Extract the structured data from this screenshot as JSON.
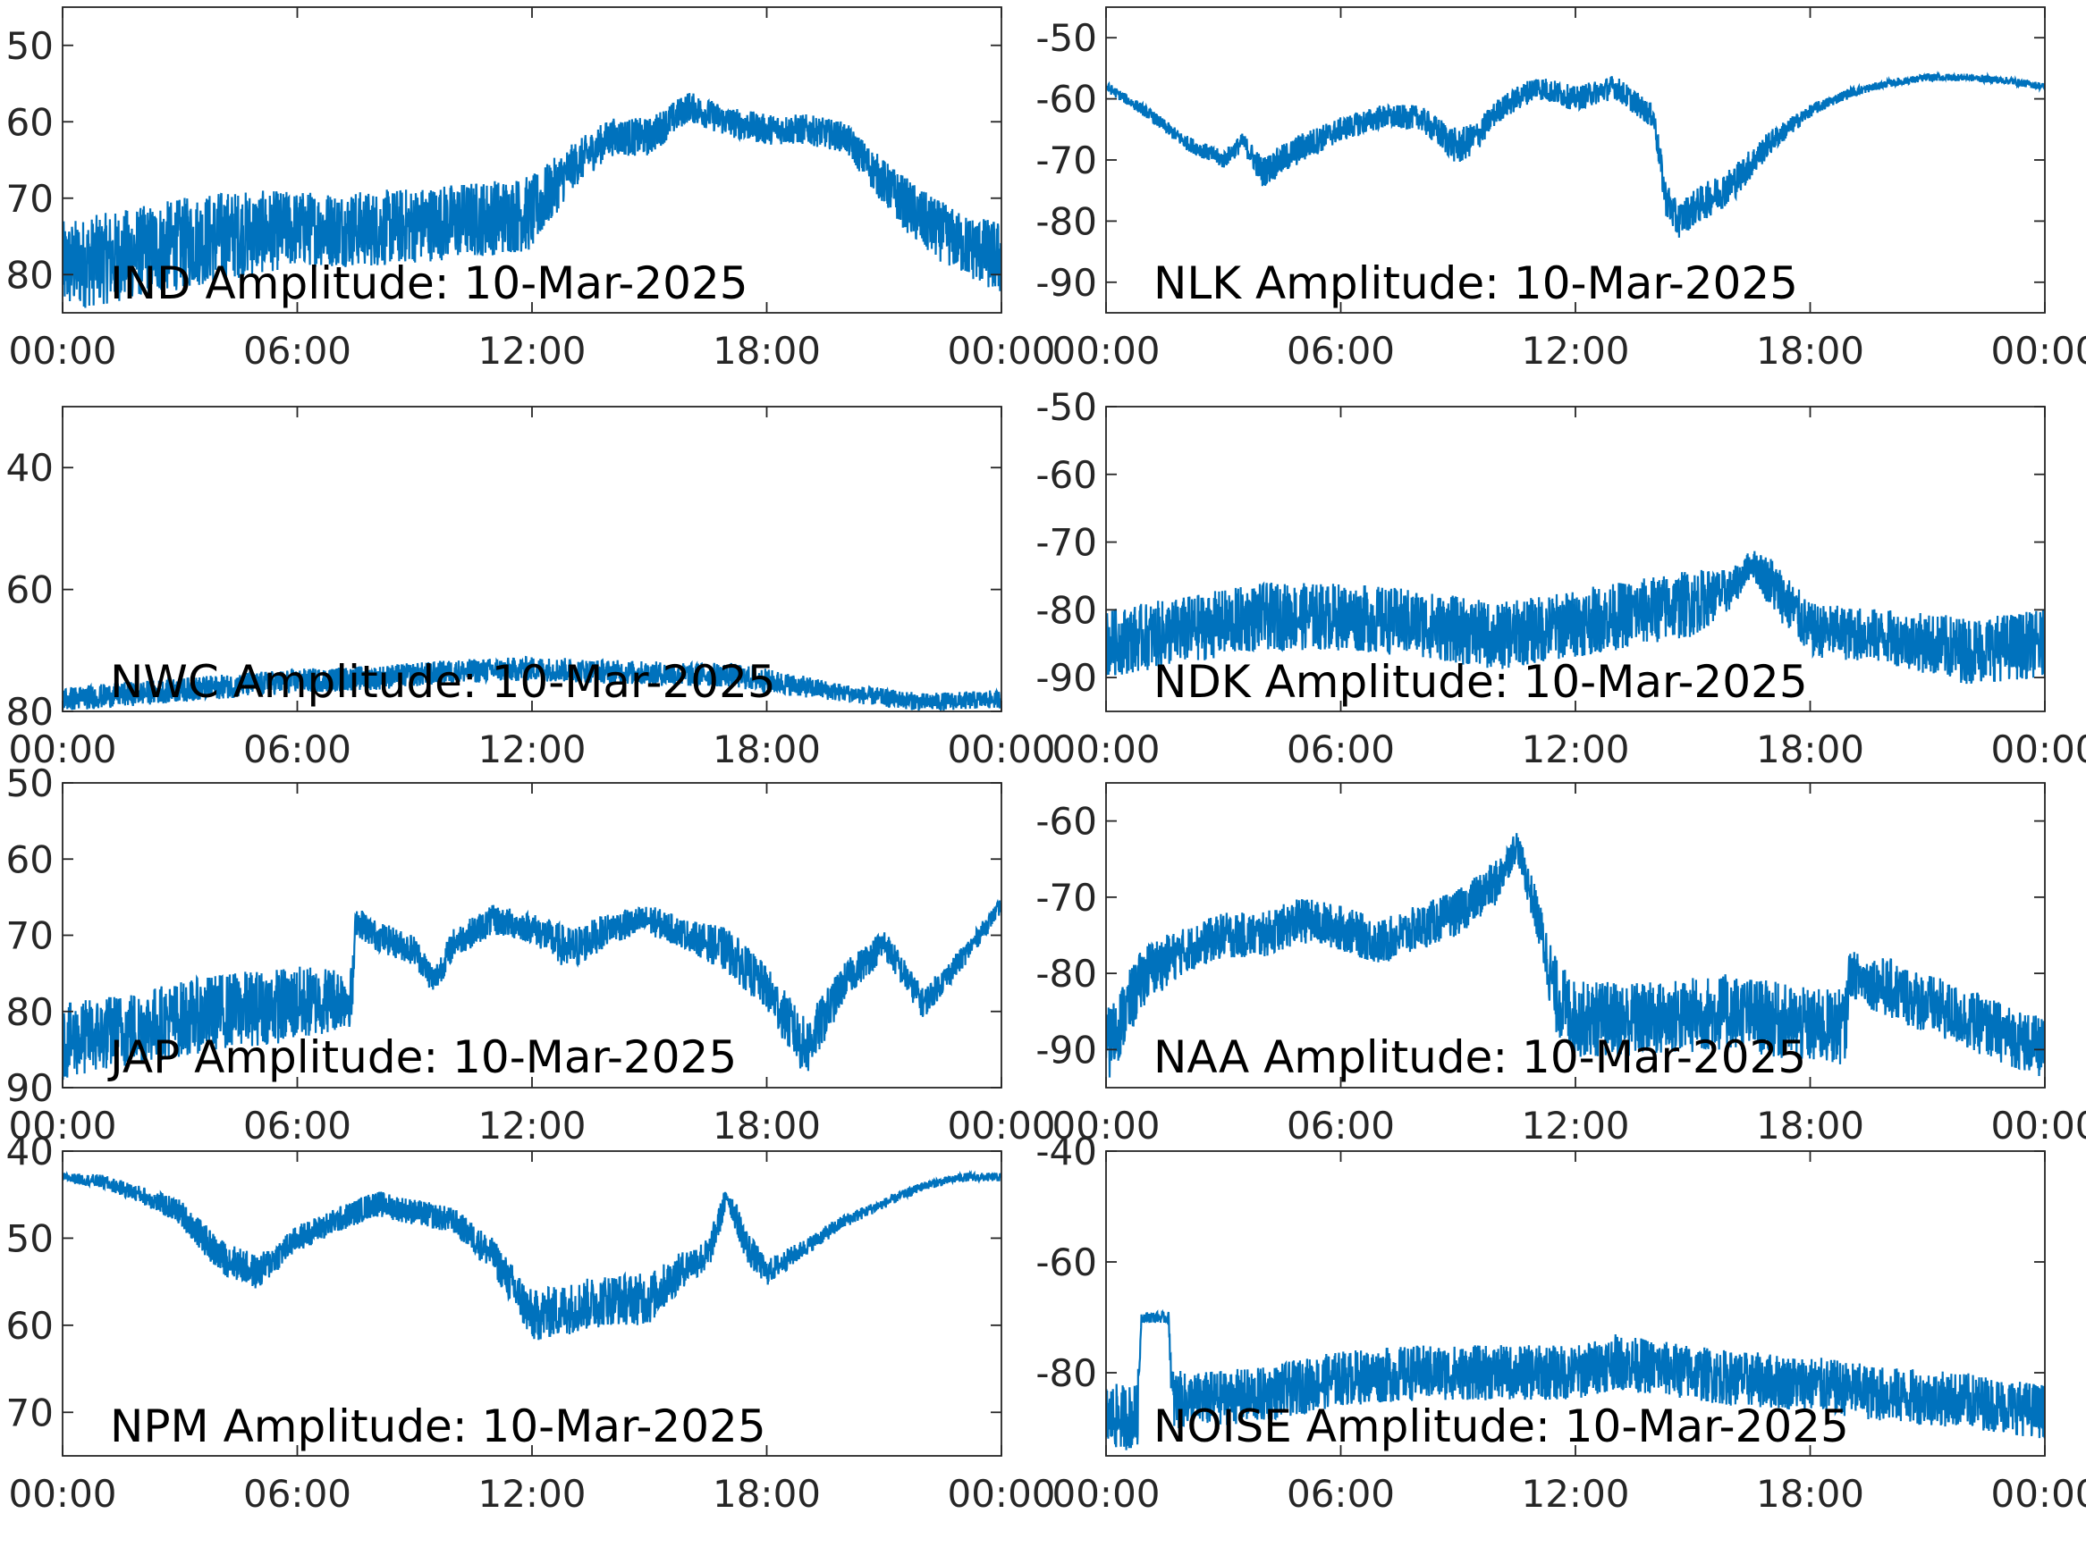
{
  "figure": {
    "line_color": "#0072BD",
    "axis_color": "#262626",
    "background": "#ffffff"
  },
  "chart_data": [
    {
      "type": "line",
      "title": "IND Amplitude: 10-Mar-2025",
      "xticks": [
        "00:00",
        "06:00",
        "12:00",
        "18:00",
        "00:00"
      ],
      "x_range_hours": [
        0,
        24
      ],
      "yticks": [
        "50",
        "60",
        "70",
        "80"
      ],
      "ytick_values": [
        -50,
        -60,
        -70,
        -80
      ],
      "ylim": [
        -85,
        -45
      ],
      "grid": false,
      "envelope": {
        "x": [
          0,
          2,
          4,
          6,
          8,
          10,
          12,
          13,
          14,
          15,
          16,
          17,
          18,
          19,
          20,
          21,
          22,
          23,
          24
        ],
        "y": [
          -79,
          -77,
          -75,
          -74,
          -74,
          -73,
          -72,
          -66,
          -62,
          -62,
          -58,
          -60,
          -61,
          -61,
          -62,
          -68,
          -73,
          -76,
          -78
        ],
        "noise": [
          6,
          6,
          6,
          5,
          5,
          5,
          5,
          3,
          2.5,
          2.5,
          2,
          2,
          2,
          2,
          2,
          3,
          4,
          4,
          5
        ]
      }
    },
    {
      "type": "line",
      "title": "NLK Amplitude: 10-Mar-2025",
      "xticks": [
        "00:00",
        "06:00",
        "12:00",
        "18:00",
        "00:00"
      ],
      "x_range_hours": [
        0,
        24
      ],
      "yticks": [
        "-50",
        "-60",
        "-70",
        "-80",
        "-90"
      ],
      "ytick_values": [
        -50,
        -60,
        -70,
        -80,
        -90
      ],
      "ylim": [
        -95,
        -45
      ],
      "grid": false,
      "envelope": {
        "x": [
          0,
          1,
          2,
          3,
          3.5,
          4,
          5,
          6,
          7,
          8,
          9,
          9.5,
          10,
          11,
          12,
          13,
          14,
          14.3,
          14.6,
          15,
          16,
          17,
          18,
          19,
          20,
          21,
          22,
          23,
          24
        ],
        "y": [
          -58,
          -62,
          -67,
          -70,
          -67,
          -72,
          -68,
          -65,
          -63,
          -63,
          -68,
          -66,
          -62,
          -58,
          -60,
          -58,
          -63,
          -76,
          -80,
          -78,
          -74,
          -67,
          -62,
          -59,
          -57.5,
          -56.5,
          -56.5,
          -57,
          -58
        ],
        "noise": [
          0.8,
          1,
          1.2,
          1.5,
          1.5,
          2.5,
          2.5,
          2,
          2,
          2,
          3,
          2.5,
          2,
          2,
          2,
          2,
          2,
          3,
          3,
          3,
          3,
          2,
          1,
          0.8,
          0.6,
          0.6,
          0.6,
          0.6,
          0.6
        ]
      }
    },
    {
      "type": "line",
      "title": "NWC Amplitude: 10-Mar-2025",
      "xticks": [
        "00:00",
        "06:00",
        "12:00",
        "18:00",
        "00:00"
      ],
      "x_range_hours": [
        0,
        24
      ],
      "yticks": [
        "40",
        "60",
        "80"
      ],
      "ytick_values": [
        -40,
        -60,
        -80
      ],
      "ylim": [
        -80,
        -30
      ],
      "grid": false,
      "envelope": {
        "x": [
          0,
          2,
          4,
          6,
          8,
          10,
          12,
          14,
          16,
          17,
          18,
          20,
          22,
          24
        ],
        "y": [
          -78,
          -77,
          -76,
          -75,
          -74.5,
          -73.5,
          -73,
          -73.5,
          -74,
          -74,
          -75,
          -77,
          -78.5,
          -78
        ],
        "noise": [
          2,
          2,
          2,
          2,
          2,
          2,
          2,
          2,
          2,
          2,
          2,
          1.5,
          1.5,
          1.5
        ]
      }
    },
    {
      "type": "line",
      "title": "NDK Amplitude: 10-Mar-2025",
      "xticks": [
        "00:00",
        "06:00",
        "12:00",
        "18:00",
        "00:00"
      ],
      "x_range_hours": [
        0,
        24
      ],
      "yticks": [
        "-50",
        "-60",
        "-70",
        "-80",
        "-90"
      ],
      "ytick_values": [
        -50,
        -60,
        -70,
        -80,
        -90
      ],
      "ylim": [
        -95,
        -50
      ],
      "grid": false,
      "envelope": {
        "x": [
          0,
          2,
          4,
          6,
          8,
          10,
          12,
          14,
          15,
          16,
          16.5,
          17,
          18,
          20,
          22,
          24
        ],
        "y": [
          -85,
          -83,
          -81,
          -81,
          -82,
          -84,
          -82,
          -80,
          -79,
          -77,
          -73,
          -76,
          -83,
          -84,
          -86,
          -85
        ],
        "noise": [
          5,
          5,
          5,
          5,
          5,
          5,
          5,
          5,
          5,
          3,
          2,
          4,
          4,
          4,
          5,
          5
        ]
      }
    },
    {
      "type": "line",
      "title": "JAP Amplitude: 10-Mar-2025",
      "xticks": [
        "00:00",
        "06:00",
        "12:00",
        "18:00",
        "00:00"
      ],
      "x_range_hours": [
        0,
        24
      ],
      "yticks": [
        "50",
        "60",
        "70",
        "80",
        "90"
      ],
      "ytick_values": [
        -50,
        -60,
        -70,
        -80,
        -90
      ],
      "ylim": [
        -90,
        -50
      ],
      "grid": false,
      "envelope": {
        "x": [
          0,
          2,
          4,
          6,
          7.4,
          7.5,
          8,
          9,
          9.5,
          10,
          11,
          12,
          13,
          14,
          15,
          16,
          17,
          18,
          19,
          20,
          21,
          22,
          23,
          24
        ],
        "y": [
          -84,
          -82,
          -80,
          -79,
          -78,
          -68,
          -70,
          -72,
          -76,
          -71,
          -68,
          -69,
          -72,
          -69,
          -68,
          -70,
          -72,
          -77,
          -85,
          -76,
          -71,
          -79,
          -73,
          -66
        ],
        "noise": [
          5,
          5,
          5,
          5,
          4,
          2,
          2,
          2,
          2,
          2,
          2,
          2,
          3,
          2,
          2,
          2,
          3,
          3,
          4,
          2.5,
          2,
          2,
          1.5,
          1
        ]
      }
    },
    {
      "type": "line",
      "title": "NAA Amplitude: 10-Mar-2025",
      "xticks": [
        "00:00",
        "06:00",
        "12:00",
        "18:00",
        "00:00"
      ],
      "x_range_hours": [
        0,
        24
      ],
      "yticks": [
        "-60",
        "-70",
        "-80",
        "-90"
      ],
      "ytick_values": [
        -60,
        -70,
        -80,
        -90
      ],
      "ylim": [
        -95,
        -55
      ],
      "grid": false,
      "envelope": {
        "x": [
          0,
          1,
          2,
          3,
          4,
          5,
          6,
          7,
          8,
          9,
          10,
          10.5,
          11,
          11.5,
          12,
          14,
          16,
          18,
          18.9,
          19,
          20,
          22,
          24
        ],
        "y": [
          -90,
          -80,
          -77,
          -75,
          -75,
          -73,
          -74,
          -76,
          -74,
          -72,
          -68,
          -63,
          -72,
          -83,
          -86,
          -86,
          -85,
          -87,
          -87,
          -80,
          -82,
          -86,
          -90
        ],
        "noise": [
          5,
          4,
          3,
          3,
          3,
          3,
          3,
          3,
          3,
          3,
          3,
          2,
          3,
          5,
          5,
          5,
          5,
          5,
          5,
          3,
          4,
          4,
          4
        ]
      }
    },
    {
      "type": "line",
      "title": "NPM Amplitude: 10-Mar-2025",
      "xticks": [
        "00:00",
        "06:00",
        "12:00",
        "18:00",
        "00:00"
      ],
      "x_range_hours": [
        0,
        24
      ],
      "yticks": [
        "40",
        "50",
        "60",
        "70"
      ],
      "ytick_values": [
        -40,
        -50,
        -60,
        -70
      ],
      "ylim": [
        -75,
        -40
      ],
      "grid": false,
      "envelope": {
        "x": [
          0,
          1,
          2,
          3,
          4,
          5,
          6,
          7,
          8,
          9,
          10,
          11,
          12,
          13,
          14,
          15,
          16,
          16.5,
          17,
          17.5,
          18,
          19,
          20,
          21,
          22,
          23,
          24
        ],
        "y": [
          -43,
          -43.5,
          -45,
          -47,
          -52,
          -54,
          -50,
          -48,
          -46,
          -47,
          -48,
          -52,
          -59,
          -58,
          -57,
          -57,
          -53,
          -52,
          -45,
          -51,
          -54,
          -51,
          -48,
          -46,
          -44,
          -43,
          -43
        ],
        "noise": [
          0.5,
          0.8,
          1,
          1.5,
          2,
          2,
          1.5,
          1.5,
          1.5,
          1.5,
          1.5,
          2,
          3,
          3,
          3,
          3,
          2,
          2,
          1.5,
          2,
          1.5,
          1,
          0.8,
          0.6,
          0.5,
          0.5,
          0.5
        ]
      }
    },
    {
      "type": "line",
      "title": "NOISE Amplitude: 10-Mar-2025",
      "xticks": [
        "00:00",
        "06:00",
        "12:00",
        "18:00",
        "00:00"
      ],
      "x_range_hours": [
        0,
        24
      ],
      "yticks": [
        "-40",
        "-60",
        "-80"
      ],
      "ytick_values": [
        -40,
        -60,
        -80
      ],
      "ylim": [
        -95,
        -40
      ],
      "grid": false,
      "envelope": {
        "x": [
          0,
          0.8,
          0.9,
          1.6,
          1.7,
          2,
          4,
          6,
          8,
          10,
          11,
          12,
          13,
          14,
          16,
          18,
          20,
          22,
          24
        ],
        "y": [
          -88,
          -88,
          -70,
          -70,
          -85,
          -85,
          -84,
          -81,
          -80,
          -80,
          -80,
          -80,
          -78,
          -79,
          -81,
          -82,
          -84,
          -85,
          -87
        ],
        "noise": [
          6,
          6,
          1,
          1,
          6,
          5,
          5,
          5,
          5,
          5,
          5,
          5,
          5,
          5,
          5,
          5,
          5,
          5,
          5
        ]
      }
    }
  ]
}
